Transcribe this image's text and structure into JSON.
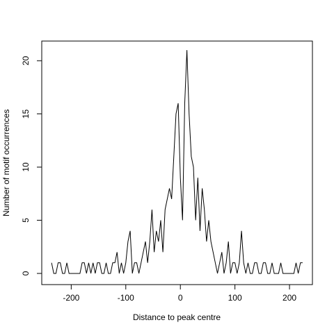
{
  "chart_data": {
    "type": "line",
    "x_label": "Distance to peak centre",
    "y_label": "Number of motif occurrences",
    "x": [
      -236,
      -232,
      -228,
      -224,
      -220,
      -216,
      -212,
      -208,
      -204,
      -200,
      -196,
      -192,
      -188,
      -184,
      -180,
      -176,
      -172,
      -168,
      -164,
      -160,
      -156,
      -152,
      -148,
      -144,
      -140,
      -136,
      -132,
      -128,
      -124,
      -120,
      -116,
      -112,
      -108,
      -104,
      -100,
      -96,
      -92,
      -88,
      -84,
      -80,
      -76,
      -72,
      -68,
      -64,
      -60,
      -56,
      -52,
      -48,
      -44,
      -40,
      -36,
      -32,
      -28,
      -24,
      -20,
      -16,
      -12,
      -8,
      -4,
      0,
      4,
      8,
      12,
      16,
      20,
      24,
      28,
      32,
      36,
      40,
      44,
      48,
      52,
      56,
      60,
      64,
      68,
      72,
      76,
      80,
      84,
      88,
      92,
      96,
      100,
      104,
      108,
      112,
      116,
      120,
      124,
      128,
      132,
      136,
      140,
      144,
      148,
      152,
      156,
      160,
      164,
      168,
      172,
      176,
      180,
      184,
      188,
      192,
      196,
      200,
      204,
      208,
      212,
      216,
      220,
      224
    ],
    "series": [
      {
        "color": "#000000",
        "values": [
          1,
          0,
          0,
          1,
          1,
          0,
          0,
          1,
          0,
          0,
          0,
          0,
          0,
          0,
          1,
          1,
          0,
          1,
          0,
          1,
          0,
          1,
          1,
          0,
          0,
          1,
          0,
          0,
          1,
          1,
          2,
          0,
          1,
          0,
          1,
          3,
          4,
          0,
          1,
          1,
          0,
          1,
          2,
          3,
          1,
          3,
          6,
          2,
          4,
          3,
          5,
          2,
          6,
          7,
          8,
          7,
          11,
          15,
          16,
          9,
          5,
          16,
          21,
          15,
          11,
          10,
          5,
          9,
          4,
          8,
          6,
          3,
          5,
          3,
          2,
          1,
          0,
          1,
          2,
          0,
          1,
          3,
          0,
          1,
          1,
          0,
          1,
          4,
          1,
          0,
          1,
          0,
          0,
          1,
          1,
          0,
          0,
          1,
          1,
          0,
          0,
          1,
          0,
          0,
          0,
          1,
          0,
          0,
          0,
          0,
          0,
          0,
          1,
          0,
          1,
          1
        ]
      }
    ],
    "xlim": [
      -254,
      242
    ],
    "ylim": [
      -1.05,
      21.85
    ],
    "xticks": [
      -200,
      -100,
      0,
      100,
      200
    ],
    "yticks": [
      0,
      5,
      10,
      15,
      20
    ]
  }
}
